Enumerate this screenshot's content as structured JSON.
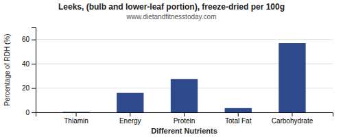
{
  "chart_data": {
    "type": "bar",
    "title": "Leeks, (bulb and lower-leaf portion), freeze-dried per 100g",
    "subtitle": "www.dietandfitnesstoday.com",
    "xlabel": "Different Nutrients",
    "ylabel": "Percentage of RDH (%)",
    "categories": [
      "Thiamin",
      "Energy",
      "Protein",
      "Total Fat",
      "Carbohydrate"
    ],
    "values": [
      0.4,
      16.0,
      27.5,
      3.5,
      57.0
    ],
    "color": "#2e4a8c",
    "ylim": [
      0,
      70
    ],
    "yticks": [
      0,
      20,
      40,
      60
    ],
    "grid": true
  }
}
